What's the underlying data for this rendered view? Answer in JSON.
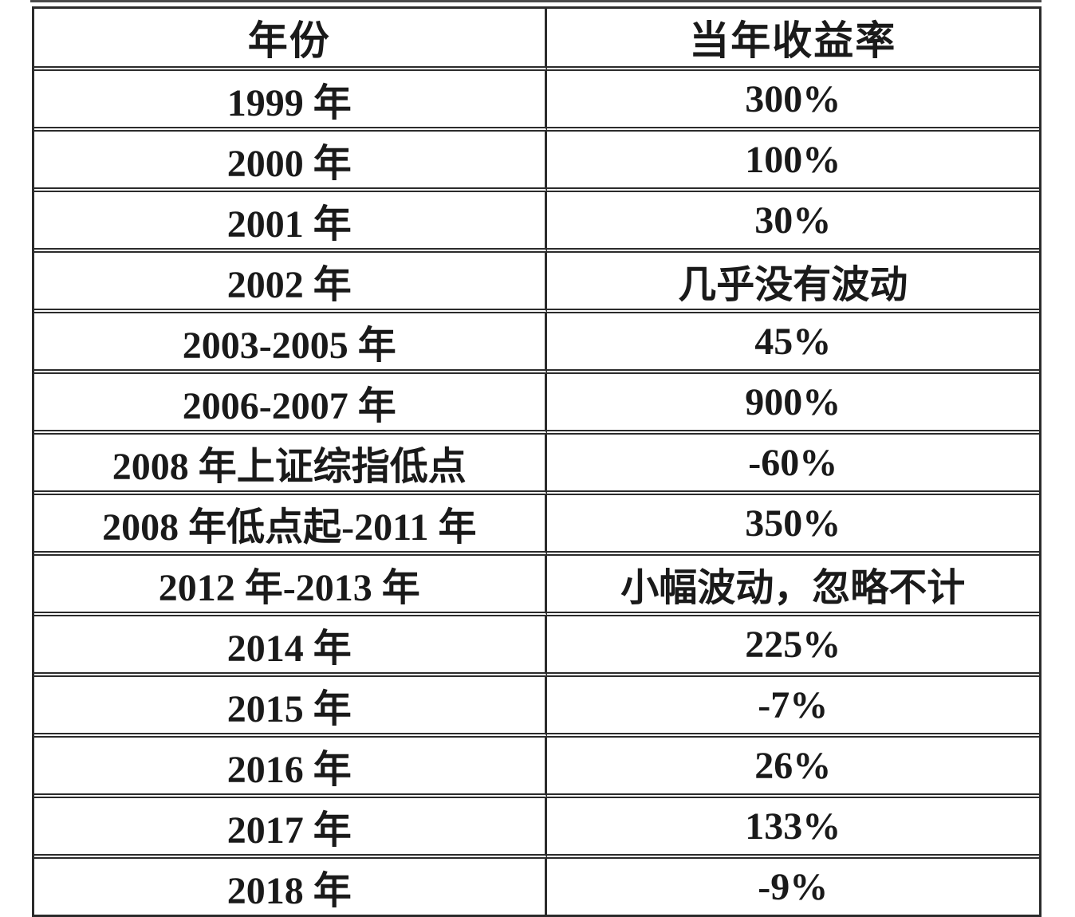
{
  "table": {
    "columns": [
      "年份",
      "当年收益率"
    ],
    "rows": [
      [
        "1999 年",
        "300%"
      ],
      [
        "2000 年",
        "100%"
      ],
      [
        "2001 年",
        "30%"
      ],
      [
        "2002 年",
        "几乎没有波动"
      ],
      [
        "2003-2005 年",
        "45%"
      ],
      [
        "2006-2007 年",
        "900%"
      ],
      [
        "2008 年上证综指低点",
        "-60%"
      ],
      [
        "2008 年低点起-2011 年",
        "350%"
      ],
      [
        "2012 年-2013 年",
        "小幅波动，忽略不计"
      ],
      [
        "2014 年",
        "225%"
      ],
      [
        "2015 年",
        "-7%"
      ],
      [
        "2016 年",
        "26%"
      ],
      [
        "2017 年",
        "133%"
      ],
      [
        "2018 年",
        "-9%"
      ]
    ]
  },
  "chart_data": {
    "type": "table",
    "title": "",
    "columns": [
      "年份",
      "当年收益率"
    ],
    "rows": [
      {
        "period": "1999 年",
        "return": "300%"
      },
      {
        "period": "2000 年",
        "return": "100%"
      },
      {
        "period": "2001 年",
        "return": "30%"
      },
      {
        "period": "2002 年",
        "return": "几乎没有波动"
      },
      {
        "period": "2003-2005 年",
        "return": "45%"
      },
      {
        "period": "2006-2007 年",
        "return": "900%"
      },
      {
        "period": "2008 年上证综指低点",
        "return": "-60%"
      },
      {
        "period": "2008 年低点起-2011 年",
        "return": "350%"
      },
      {
        "period": "2012 年-2013 年",
        "return": "小幅波动，忽略不计"
      },
      {
        "period": "2014 年",
        "return": "225%"
      },
      {
        "period": "2015 年",
        "return": "-7%"
      },
      {
        "period": "2016 年",
        "return": "26%"
      },
      {
        "period": "2017 年",
        "return": "133%"
      },
      {
        "period": "2018 年",
        "return": "-9%"
      }
    ],
    "colors": {
      "border": "#2b2b2b",
      "text": "#1a1a1a",
      "background": "#ffffff"
    }
  }
}
